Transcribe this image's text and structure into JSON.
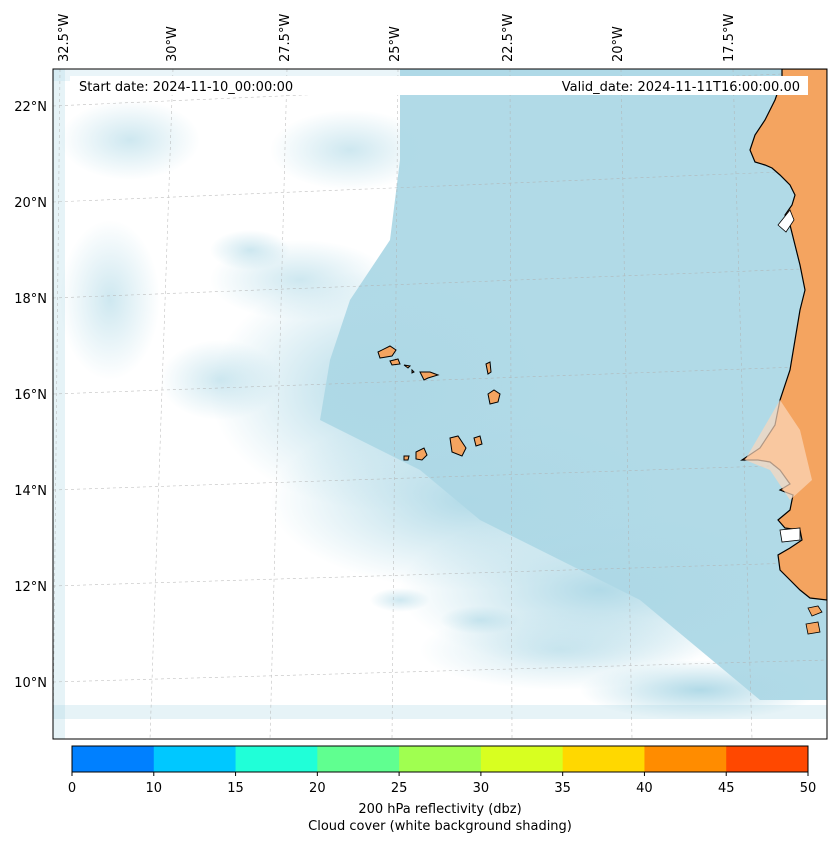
{
  "header": {
    "start_date": "Start date: 2024-11-10_00:00:00",
    "valid_date": "Valid_date: 2024-11-11T16:00:00.00"
  },
  "map": {
    "lon_labels": [
      "32.5°W",
      "30°W",
      "27.5°W",
      "25°W",
      "22.5°W",
      "20°W",
      "17.5°W"
    ],
    "lat_labels": [
      "22°N",
      "20°N",
      "18°N",
      "16°N",
      "14°N",
      "12°N",
      "10°N"
    ],
    "colors": {
      "ocean_cloud": "#add8e6",
      "land": "#f4a460",
      "gridline": "#b0b0b0"
    }
  },
  "colorbar": {
    "ticks": [
      "0",
      "10",
      "15",
      "20",
      "25",
      "30",
      "35",
      "40",
      "45",
      "50"
    ],
    "colors": [
      "#0080ff",
      "#00c8ff",
      "#20ffd8",
      "#60ff90",
      "#a0ff50",
      "#d8ff20",
      "#ffd800",
      "#ff8c00",
      "#ff4800"
    ],
    "label_line1": "200 hPa reflectivity (dbz)",
    "label_line2": "Cloud cover (white background shading)"
  }
}
